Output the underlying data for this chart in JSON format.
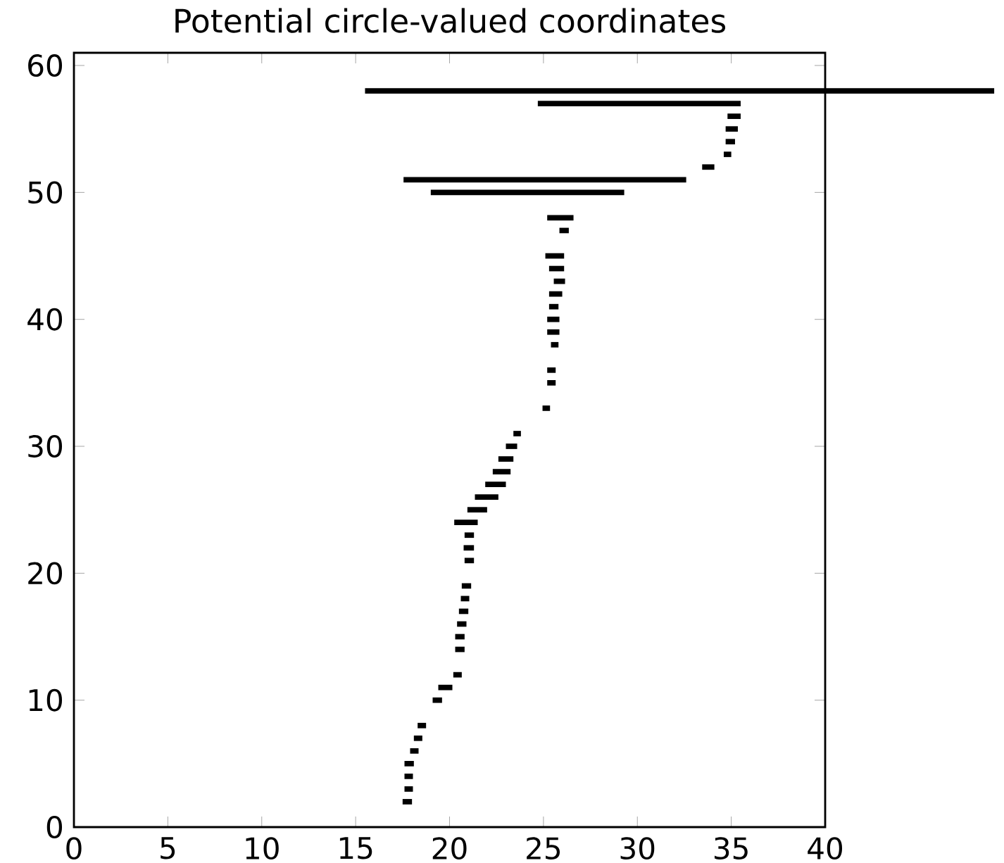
{
  "chart_data": {
    "type": "bar",
    "orientation": "horizontal",
    "title": "Potential circle-valued coordinates",
    "color": "#000000",
    "x": [
      2,
      3,
      4,
      5,
      6,
      7,
      8,
      10,
      11,
      12,
      14,
      15,
      16,
      17,
      18,
      19,
      21,
      22,
      23,
      24,
      25,
      26,
      27,
      28,
      29,
      30,
      31,
      33,
      35,
      36,
      38,
      39,
      40,
      41,
      42,
      43,
      44,
      45,
      47,
      48,
      50,
      51,
      52,
      53,
      54,
      55,
      56,
      57,
      58
    ],
    "base": [
      17.5,
      17.6,
      17.6,
      17.6,
      17.9,
      18.1,
      18.3,
      19.1,
      19.4,
      20.2,
      20.3,
      20.3,
      20.4,
      20.5,
      20.6,
      20.65,
      20.8,
      20.75,
      20.8,
      20.25,
      20.95,
      21.35,
      21.9,
      22.3,
      22.6,
      23.0,
      23.4,
      24.95,
      25.2,
      25.2,
      25.4,
      25.2,
      25.2,
      25.3,
      25.3,
      25.55,
      25.3,
      25.1,
      25.85,
      25.2,
      19.0,
      17.55,
      33.45,
      34.6,
      34.7,
      34.7,
      34.8,
      24.7,
      15.5
    ],
    "values": [
      0.5,
      0.45,
      0.45,
      0.5,
      0.45,
      0.45,
      0.45,
      0.5,
      0.75,
      0.45,
      0.5,
      0.5,
      0.5,
      0.5,
      0.45,
      0.5,
      0.5,
      0.55,
      0.5,
      1.25,
      1.05,
      1.25,
      1.1,
      0.95,
      0.8,
      0.6,
      0.4,
      0.4,
      0.45,
      0.45,
      0.4,
      0.65,
      0.65,
      0.5,
      0.7,
      0.6,
      0.8,
      1.0,
      0.5,
      1.4,
      10.3,
      15.05,
      0.65,
      0.4,
      0.5,
      0.65,
      0.7,
      10.8,
      33.5
    ],
    "xlim": [
      0,
      40
    ],
    "xticks": [
      0,
      5,
      10,
      15,
      20,
      25,
      30,
      35,
      40
    ],
    "ylim": [
      0,
      61
    ],
    "yticks": [
      0,
      10,
      20,
      30,
      40,
      50,
      60
    ]
  }
}
